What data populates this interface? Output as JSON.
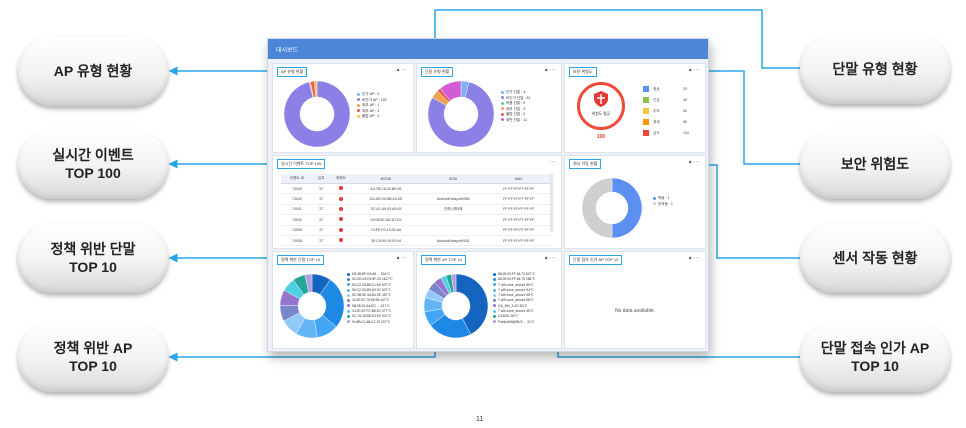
{
  "callouts": {
    "ap_type": "AP 유형 현황",
    "realtime": "실시간 이벤트\nTOP 100",
    "policy_terminal": "정책 위반 단말\nTOP 10",
    "policy_ap": "정책 위반 AP\nTOP 10",
    "terminal_type": "단말 유형 현황",
    "security_risk": "보안 위험도",
    "sensor_status": "센서 작동 현황",
    "terminal_access": "단말 접속 인가 AP\nTOP 10"
  },
  "dashboard": {
    "title": "대시보드",
    "tools_icon": "▲",
    "more_icon": "···",
    "panels": {
      "ap_type": {
        "title": "AP 유형 현황",
        "legend": [
          {
            "label": "인가 AP : 0",
            "color": "#7fb0ff"
          },
          {
            "label": "비인가 AP : 152",
            "color": "#8a80e6"
          },
          {
            "label": "외부 AP : 1",
            "color": "#f0a24c"
          },
          {
            "label": "외부 AP : 3",
            "color": "#e55b5b"
          },
          {
            "label": "불법 AP : 2",
            "color": "#f5c542"
          }
        ],
        "chart_data": {
          "type": "pie",
          "categories": [
            "인가 AP",
            "비인가 AP",
            "외부 AP",
            "외부 AP",
            "불법 AP"
          ],
          "values": [
            0,
            152,
            1,
            3,
            2
          ]
        }
      },
      "terminal_type": {
        "title": "단말 유형 현황",
        "legend": [
          {
            "label": "인가 단말 : 4",
            "color": "#7fb0ff"
          },
          {
            "label": "비인가 단말 : 81",
            "color": "#8a80e6"
          },
          {
            "label": "허용 단말 : 0",
            "color": "#5ccf8a"
          },
          {
            "label": "외부 단말 : 4",
            "color": "#f0a24c"
          },
          {
            "label": "불법 단말 : 2",
            "color": "#e55b5b"
          },
          {
            "label": "위반 단말 : 11",
            "color": "#d45bd6"
          }
        ],
        "chart_data": {
          "type": "pie",
          "categories": [
            "인가 단말",
            "비인가 단말",
            "허용 단말",
            "외부 단말",
            "불법 단말",
            "위반 단말"
          ],
          "values": [
            4,
            81,
            0,
            4,
            2,
            11
          ]
        }
      },
      "security": {
        "title": "보안 위험도",
        "badge_label": "위험도 평균",
        "score": "100",
        "levels": [
          {
            "label": "정상",
            "value": "20",
            "color": "#5b8ff0"
          },
          {
            "label": "관심",
            "value": "40",
            "color": "#8bc34a"
          },
          {
            "label": "주의",
            "value": "60",
            "color": "#f5c542"
          },
          {
            "label": "경계",
            "value": "80",
            "color": "#ff9800"
          },
          {
            "label": "심각",
            "value": "100",
            "color": "#f44336"
          }
        ]
      },
      "realtime": {
        "title": "실시간 이벤트 TOP 100",
        "columns": [
          "이벤트 ID",
          "유지",
          "위험도",
          "BSSID",
          "SSID",
          "MAC"
        ],
        "rows": [
          [
            "74043",
            "37",
            "",
            "A4:7B:C6:32:B9:2B",
            "",
            "FF:FF:FF:FF:FF:FF"
          ],
          [
            "74042",
            "37",
            "",
            "DA:AE:D0:6B:A3:6D",
            "AndroidHotspot0958",
            "FF:FF:FF:FF:FF:FF"
          ],
          [
            "74041",
            "37",
            "",
            "3C:A1:A9:53:A9:05",
            "인하나원0매",
            "FF:FF:FF:FF:FF:FF"
          ],
          [
            "74040",
            "37",
            "",
            "00:08:B1:A0:3D:D2",
            "",
            "FF:FF:FF:FF:FF:FF"
          ],
          [
            "74039",
            "37",
            "",
            "74:FE:F0:13:A2:A6",
            "",
            "FF:FF:FF:FF:FF:FF"
          ],
          [
            "74038",
            "37",
            "",
            "3E:C8:99:10:00:04",
            "AndroidHotspot9181",
            "FF:FF:FF:FF:FF:FF"
          ]
        ]
      },
      "sensor": {
        "title": "센서 작동 현황",
        "legend": [
          {
            "label": "작동 : 1",
            "color": "#5b8ff0"
          },
          {
            "label": "미작동 : 1",
            "color": "#cfcfcf"
          }
        ],
        "chart_data": {
          "type": "pie",
          "categories": [
            "작동",
            "미작동"
          ],
          "values": [
            1,
            1
          ]
        }
      },
      "policy_terminal": {
        "title": "정책 위반 단말 TOP 10",
        "legend": [
          {
            "label": "D8:3B:BF:EA:68 ... 534℃",
            "color": "#1565c0"
          },
          {
            "label": "0C:DD:24:E4:6F:23 1467℃",
            "color": "#1e88e5"
          },
          {
            "label": "90:C2:C8:B9:C1:E6 607℃",
            "color": "#42a5f5"
          },
          {
            "label": "90:C2:C8:B9:A9:3C 607℃",
            "color": "#64b5f6"
          },
          {
            "label": "5C:3B:9E:3A:B4:0E 487℃",
            "color": "#90caf9"
          },
          {
            "label": "34:2E:B7:78:68:98 447℃",
            "color": "#7986cb"
          },
          {
            "label": "5B:98:10:AA:BC ... 437℃",
            "color": "#9575cd"
          },
          {
            "label": "34:2E:B7:FC:B8:E2 377℃",
            "color": "#4dd0e1"
          },
          {
            "label": "5C:7A:15:BE:E3:E9 347℃",
            "color": "#26a69a"
          },
          {
            "label": "94:8B:C1:68:C2:10 197℃",
            "color": "#b39ddb"
          }
        ]
      },
      "policy_ap": {
        "title": "정책 위반 AP TOP 10",
        "legend": [
          {
            "label": "88:25:93:FF:64:73 547℃",
            "color": "#1565c0"
          },
          {
            "label": "88:25:93:FF:64:75 286℃",
            "color": "#1e88e5"
          },
          {
            "label": "T wifi zone_secure 96℃",
            "color": "#42a5f5"
          },
          {
            "label": "T wifi zone_secure 94℃",
            "color": "#64b5f6"
          },
          {
            "label": "T wifi zone_secure 58℃",
            "color": "#90caf9"
          },
          {
            "label": "T wifi zone_secure 58℃",
            "color": "#7986cb"
          },
          {
            "label": "GA_MN_2.4G 50℃",
            "color": "#9575cd"
          },
          {
            "label": "T wifi zone_secure 35℃",
            "color": "#4dd0e1"
          },
          {
            "label": "CASOK 35℃",
            "color": "#26a69a"
          },
          {
            "label": "PublicWifi@BUS ... 31℃",
            "color": "#b39ddb"
          }
        ]
      },
      "terminal_access": {
        "title": "단말 접속 인가 AP TOP 10",
        "no_data": "No data available."
      }
    }
  },
  "footer": {
    "page_number": "11"
  }
}
